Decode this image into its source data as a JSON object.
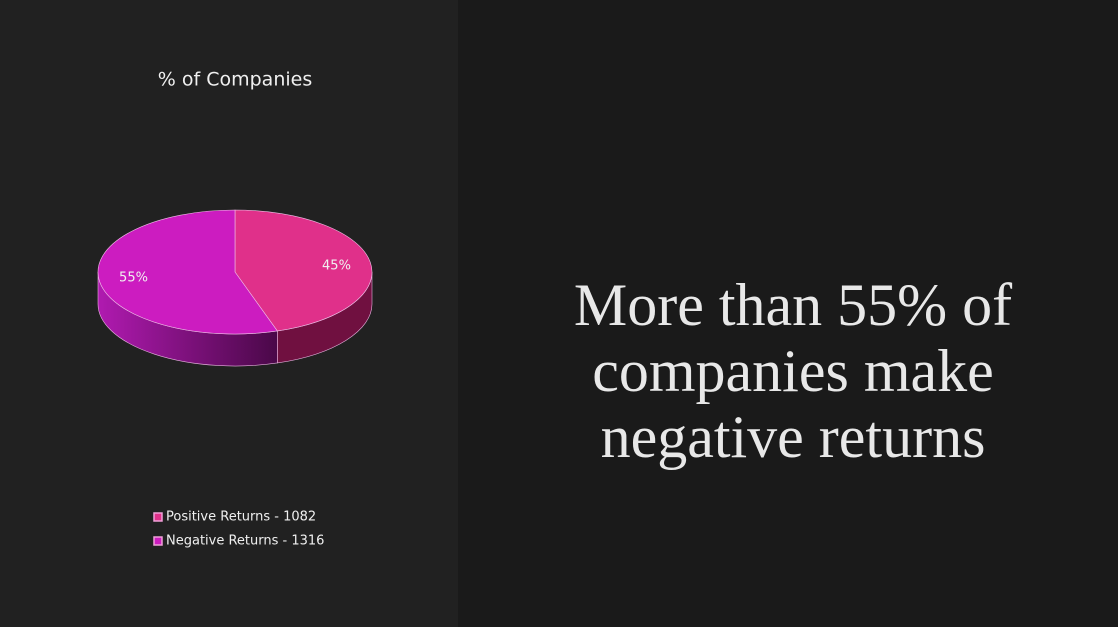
{
  "chart_data": {
    "type": "pie",
    "title": "% of Companies",
    "categories": [
      "Positive Returns - 1082",
      "Negative Returns - 1316"
    ],
    "values": [
      45,
      55
    ],
    "value_labels": [
      "45%",
      "55%"
    ],
    "colors": [
      "#e0308a",
      "#cc1cc0"
    ],
    "side_colors": [
      "#701040",
      "#7a0c78"
    ],
    "legend": "bottom"
  },
  "headline": "More than 55% of companies make negative returns"
}
